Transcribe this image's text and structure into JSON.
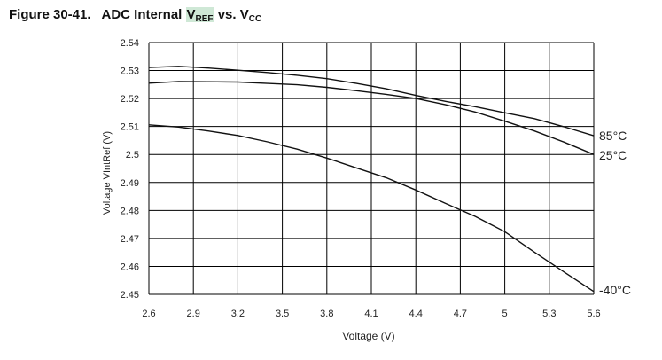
{
  "figure": {
    "number": "Figure 30-41.",
    "title_main": "ADC Internal ",
    "title_v1": "V",
    "title_sub1": "REF",
    "title_vs": " vs. V",
    "title_sub2": "CC"
  },
  "chart_data": {
    "type": "line",
    "xlabel": "Voltage (V)",
    "ylabel": "Voltage VIntRef (V)",
    "xlim": [
      2.6,
      5.6
    ],
    "ylim": [
      2.45,
      2.54
    ],
    "xticks": [
      "2.6",
      "2.9",
      "3.2",
      "3.5",
      "3.8",
      "4.1",
      "4.4",
      "4.7",
      "5",
      "5.3",
      "5.6"
    ],
    "yticks": [
      "2.54",
      "2.53",
      "2.52",
      "2.51",
      "2.5",
      "2.49",
      "2.48",
      "2.47",
      "2.46",
      "2.45"
    ],
    "grid": true,
    "series": [
      {
        "name": "85°C",
        "x": [
          2.6,
          2.8,
          3.0,
          3.2,
          3.4,
          3.6,
          3.8,
          4.0,
          4.2,
          4.4,
          4.6,
          4.8,
          5.0,
          5.2,
          5.4,
          5.6
        ],
        "y": [
          2.5311,
          2.5315,
          2.5309,
          2.5301,
          2.5293,
          2.5283,
          2.5271,
          2.5254,
          2.5235,
          2.5211,
          2.519,
          2.5171,
          2.5149,
          2.5128,
          2.5099,
          2.5067
        ]
      },
      {
        "name": "25°C",
        "x": [
          2.6,
          2.8,
          3.0,
          3.2,
          3.4,
          3.6,
          3.8,
          4.0,
          4.2,
          4.4,
          4.6,
          4.8,
          5.0,
          5.2,
          5.4,
          5.6
        ],
        "y": [
          2.5255,
          2.5261,
          2.526,
          2.5259,
          2.5254,
          2.5249,
          2.524,
          2.5228,
          2.5215,
          2.52,
          2.5178,
          2.5152,
          2.5119,
          2.5084,
          2.5044,
          2.5
        ]
      },
      {
        "name": "-40°C",
        "x": [
          2.6,
          2.8,
          3.0,
          3.2,
          3.4,
          3.6,
          3.8,
          4.0,
          4.2,
          4.4,
          4.6,
          4.8,
          5.0,
          5.2,
          5.4,
          5.6
        ],
        "y": [
          2.5106,
          2.5098,
          2.5084,
          2.5068,
          2.5045,
          2.5019,
          2.4987,
          2.4952,
          2.4917,
          2.4873,
          2.4825,
          2.4779,
          2.4724,
          2.4651,
          2.458,
          2.451
        ]
      }
    ]
  }
}
